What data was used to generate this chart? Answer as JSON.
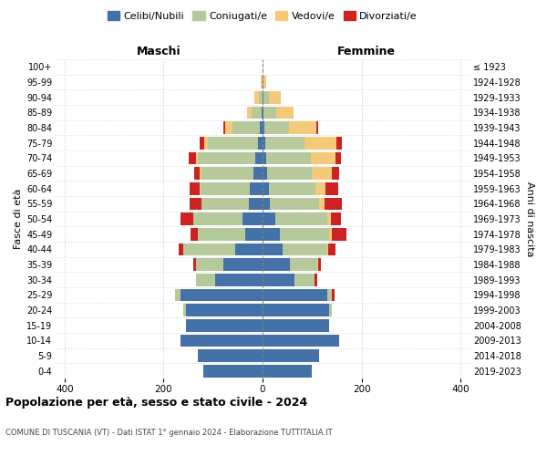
{
  "age_groups": [
    "0-4",
    "5-9",
    "10-14",
    "15-19",
    "20-24",
    "25-29",
    "30-34",
    "35-39",
    "40-44",
    "45-49",
    "50-54",
    "55-59",
    "60-64",
    "65-69",
    "70-74",
    "75-79",
    "80-84",
    "85-89",
    "90-94",
    "95-99",
    "100+"
  ],
  "birth_years": [
    "2019-2023",
    "2014-2018",
    "2009-2013",
    "2004-2008",
    "1999-2003",
    "1994-1998",
    "1989-1993",
    "1984-1988",
    "1979-1983",
    "1974-1978",
    "1969-1973",
    "1964-1968",
    "1959-1963",
    "1954-1958",
    "1949-1953",
    "1944-1948",
    "1939-1943",
    "1934-1938",
    "1929-1933",
    "1924-1928",
    "≤ 1923"
  ],
  "males": {
    "celibi": [
      120,
      130,
      165,
      155,
      155,
      165,
      95,
      80,
      55,
      35,
      40,
      28,
      25,
      18,
      15,
      10,
      5,
      2,
      0,
      0,
      0
    ],
    "coniugati": [
      0,
      0,
      0,
      0,
      5,
      12,
      40,
      55,
      105,
      95,
      100,
      95,
      100,
      105,
      115,
      100,
      55,
      20,
      8,
      2,
      0
    ],
    "vedovi": [
      0,
      0,
      0,
      0,
      0,
      0,
      0,
      0,
      0,
      0,
      0,
      0,
      2,
      5,
      5,
      8,
      15,
      10,
      8,
      2,
      0
    ],
    "divorziati": [
      0,
      0,
      0,
      0,
      0,
      0,
      0,
      5,
      10,
      15,
      25,
      25,
      20,
      10,
      15,
      10,
      5,
      0,
      0,
      0,
      0
    ]
  },
  "females": {
    "nubili": [
      100,
      115,
      155,
      135,
      135,
      130,
      65,
      55,
      40,
      35,
      25,
      15,
      12,
      10,
      8,
      5,
      3,
      2,
      2,
      0,
      0
    ],
    "coniugate": [
      0,
      0,
      0,
      0,
      5,
      10,
      40,
      55,
      90,
      100,
      105,
      100,
      95,
      90,
      90,
      80,
      50,
      25,
      10,
      2,
      0
    ],
    "vedove": [
      0,
      0,
      0,
      0,
      0,
      0,
      0,
      2,
      2,
      5,
      8,
      10,
      20,
      40,
      50,
      65,
      55,
      35,
      25,
      5,
      0
    ],
    "divorziate": [
      0,
      0,
      0,
      0,
      0,
      5,
      5,
      5,
      15,
      30,
      20,
      35,
      25,
      15,
      10,
      10,
      5,
      0,
      0,
      0,
      0
    ]
  },
  "colors": {
    "celibi": "#4472a8",
    "coniugati": "#b5c99a",
    "vedovi": "#f5c97a",
    "divorziati": "#cc2222"
  },
  "title": "Popolazione per età, sesso e stato civile - 2024",
  "subtitle": "COMUNE DI TUSCANIA (VT) - Dati ISTAT 1° gennaio 2024 - Elaborazione TUTTITALIA.IT",
  "xlabel_left": "Maschi",
  "xlabel_right": "Femmine",
  "ylabel_left": "Fasce di età",
  "ylabel_right": "Anni di nascita",
  "xlim": 420,
  "legend_labels": [
    "Celibi/Nubili",
    "Coniugati/e",
    "Vedovi/e",
    "Divorziati/e"
  ]
}
